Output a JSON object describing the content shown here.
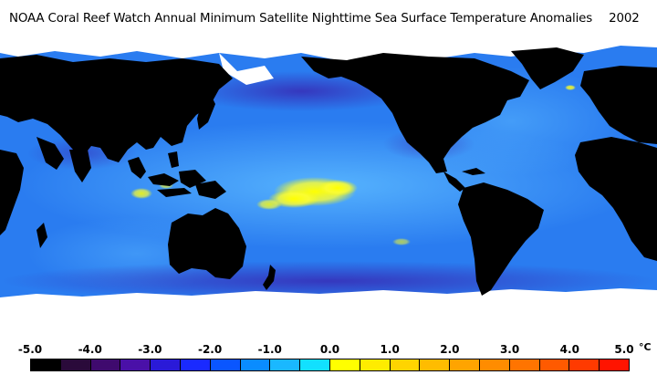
{
  "title": "NOAA Coral Reef Watch Annual Minimum Satellite Nighttime Sea Surface Temperature Anomalies",
  "year": "2002",
  "legend": {
    "ticks": [
      "-5.0",
      "-4.0",
      "-3.0",
      "-2.0",
      "-1.0",
      "0.0",
      "1.0",
      "2.0",
      "3.0",
      "4.0",
      "5.0"
    ],
    "unit": "°C",
    "colors": [
      "#000000",
      "#2a0a3a",
      "#3f0a6e",
      "#4a10a8",
      "#2a1ad8",
      "#1a2aff",
      "#0a56ff",
      "#0a8cff",
      "#1ab8ff",
      "#12e0ff",
      "#ffff00",
      "#ffec00",
      "#ffd400",
      "#ffbc00",
      "#ffa400",
      "#ff8c00",
      "#ff7400",
      "#ff5a00",
      "#ff3a00",
      "#ff1400"
    ]
  },
  "colors": {
    "land": "#000000",
    "ice": "#ffffff",
    "ocean": "#2e8cff",
    "anomaly_positive": "#ffff00"
  }
}
